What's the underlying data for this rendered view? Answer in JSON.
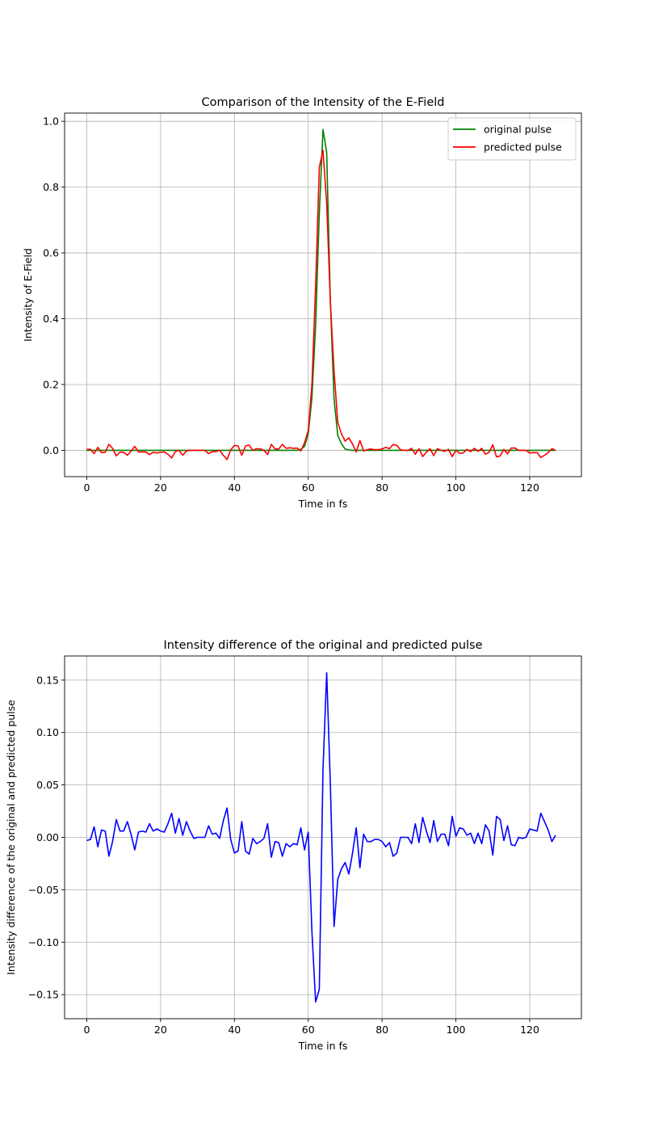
{
  "chart_data": [
    {
      "type": "line",
      "title": "Comparison of the Intensity of the E-Field",
      "xlabel": "Time in fs",
      "ylabel": "Intensity of E-Field",
      "xlim": [
        -6,
        134
      ],
      "ylim": [
        -0.08,
        1.025
      ],
      "xticks": [
        0,
        20,
        40,
        60,
        80,
        100,
        120
      ],
      "yticks": [
        0.0,
        0.2,
        0.4,
        0.6,
        0.8,
        1.0
      ],
      "grid": true,
      "legend_position": "top-right",
      "series": [
        {
          "name": "original pulse",
          "color": "#008000",
          "x": [
            0,
            57,
            58,
            59,
            60,
            61,
            62,
            63,
            64,
            65,
            66,
            67,
            68,
            69,
            70,
            71,
            72,
            127
          ],
          "y": [
            0.0,
            0.0,
            0.003,
            0.012,
            0.05,
            0.16,
            0.38,
            0.72,
            0.975,
            0.905,
            0.45,
            0.155,
            0.045,
            0.02,
            0.004,
            0.001,
            0.0,
            0.0
          ]
        },
        {
          "name": "predicted pulse",
          "color": "#ff0000",
          "x": [
            0,
            1,
            2,
            3,
            4,
            5,
            6,
            7,
            8,
            9,
            10,
            11,
            12,
            13,
            14,
            15,
            16,
            17,
            18,
            19,
            20,
            21,
            22,
            23,
            24,
            25,
            26,
            27,
            28,
            29,
            30,
            31,
            32,
            33,
            34,
            35,
            36,
            37,
            38,
            39,
            40,
            41,
            42,
            43,
            44,
            45,
            46,
            47,
            48,
            49,
            50,
            51,
            52,
            53,
            54,
            55,
            56,
            57,
            58,
            59,
            60,
            61,
            62,
            63,
            64,
            65,
            66,
            67,
            68,
            69,
            70,
            71,
            72,
            73,
            74,
            75,
            76,
            77,
            78,
            79,
            80,
            81,
            82,
            83,
            84,
            85,
            86,
            87,
            88,
            89,
            90,
            91,
            92,
            93,
            94,
            95,
            96,
            97,
            98,
            99,
            100,
            101,
            102,
            103,
            104,
            105,
            106,
            107,
            108,
            109,
            110,
            111,
            112,
            113,
            114,
            115,
            116,
            117,
            118,
            119,
            120,
            121,
            122,
            123,
            124,
            125,
            126,
            127
          ],
          "y": [
            0.003,
            0.003,
            -0.01,
            0.009,
            -0.007,
            -0.006,
            0.018,
            0.006,
            -0.017,
            -0.006,
            -0.006,
            -0.015,
            -0.003,
            0.012,
            -0.005,
            -0.005,
            -0.005,
            -0.013,
            -0.006,
            -0.008,
            -0.006,
            -0.005,
            -0.012,
            -0.023,
            -0.004,
            0.0,
            -0.015,
            -0.002,
            0.0,
            0.0,
            0.0,
            0.0,
            0.0,
            -0.01,
            -0.004,
            -0.004,
            0.0,
            -0.015,
            -0.028,
            0.001,
            0.015,
            0.013,
            -0.015,
            0.013,
            0.016,
            0.0,
            0.005,
            0.004,
            0.0,
            -0.013,
            0.018,
            0.004,
            0.004,
            0.018,
            0.006,
            0.008,
            0.006,
            0.007,
            -0.002,
            0.023,
            0.06,
            0.2,
            0.5,
            0.86,
            0.912,
            0.75,
            0.45,
            0.24,
            0.085,
            0.05,
            0.028,
            0.038,
            0.019,
            -0.005,
            0.03,
            -0.002,
            0.002,
            0.004,
            0.002,
            0.002,
            0.004,
            0.009,
            0.005,
            0.018,
            0.015,
            0.002,
            0.0,
            0.0,
            0.006,
            -0.012,
            0.005,
            -0.019,
            -0.006,
            0.005,
            -0.016,
            0.005,
            0.0,
            -0.003,
            0.003,
            -0.019,
            0.0,
            -0.009,
            -0.008,
            0.003,
            -0.004,
            0.006,
            -0.003,
            0.006,
            -0.012,
            -0.006,
            0.017,
            -0.02,
            -0.017,
            0.003,
            -0.011,
            0.007,
            0.007,
            0.0,
            0.0,
            0.0,
            -0.008,
            -0.007,
            -0.007,
            -0.022,
            -0.015,
            -0.007,
            0.005,
            0.0
          ]
        }
      ]
    },
    {
      "type": "line",
      "title": "Intensity difference of the original and predicted pulse",
      "xlabel": "Time in fs",
      "ylabel": "Intensity difference of the original and predicted pulse",
      "xlim": [
        -6,
        134
      ],
      "ylim": [
        -0.173,
        0.173
      ],
      "xticks": [
        0,
        20,
        40,
        60,
        80,
        100,
        120
      ],
      "yticks": [
        -0.15,
        -0.1,
        -0.05,
        0.0,
        0.05,
        0.1,
        0.15
      ],
      "ytick_labels": [
        "−0.15",
        "−0.10",
        "−0.05",
        "0.00",
        "0.05",
        "0.10",
        "0.15"
      ],
      "grid": true,
      "series": [
        {
          "color": "#0000ff",
          "x": [
            0,
            1,
            2,
            3,
            4,
            5,
            6,
            7,
            8,
            9,
            10,
            11,
            12,
            13,
            14,
            15,
            16,
            17,
            18,
            19,
            20,
            21,
            22,
            23,
            24,
            25,
            26,
            27,
            28,
            29,
            30,
            31,
            32,
            33,
            34,
            35,
            36,
            37,
            38,
            39,
            40,
            41,
            42,
            43,
            44,
            45,
            46,
            47,
            48,
            49,
            50,
            51,
            52,
            53,
            54,
            55,
            56,
            57,
            58,
            59,
            60,
            61,
            62,
            63,
            64,
            65,
            66,
            67,
            68,
            69,
            70,
            71,
            72,
            73,
            74,
            75,
            76,
            77,
            78,
            79,
            80,
            81,
            82,
            83,
            84,
            85,
            86,
            87,
            88,
            89,
            90,
            91,
            92,
            93,
            94,
            95,
            96,
            97,
            98,
            99,
            100,
            101,
            102,
            103,
            104,
            105,
            106,
            107,
            108,
            109,
            110,
            111,
            112,
            113,
            114,
            115,
            116,
            117,
            118,
            119,
            120,
            121,
            122,
            123,
            124,
            125,
            126,
            127
          ],
          "y": [
            -0.003,
            -0.002,
            0.01,
            -0.009,
            0.007,
            0.006,
            -0.018,
            -0.004,
            0.017,
            0.006,
            0.006,
            0.015,
            0.003,
            -0.012,
            0.005,
            0.006,
            0.005,
            0.013,
            0.006,
            0.008,
            0.006,
            0.005,
            0.013,
            0.023,
            0.004,
            0.018,
            0.002,
            0.015,
            0.006,
            -0.001,
            0.0,
            0.0,
            0.0,
            0.011,
            0.003,
            0.004,
            -0.001,
            0.016,
            0.028,
            -0.002,
            -0.015,
            -0.013,
            0.015,
            -0.013,
            -0.016,
            -0.001,
            -0.006,
            -0.004,
            -0.001,
            0.013,
            -0.019,
            -0.004,
            -0.005,
            -0.018,
            -0.006,
            -0.009,
            -0.006,
            -0.007,
            0.009,
            -0.012,
            0.005,
            -0.09,
            -0.157,
            -0.145,
            0.065,
            0.157,
            0.05,
            -0.085,
            -0.04,
            -0.03,
            -0.024,
            -0.035,
            -0.015,
            0.009,
            -0.029,
            0.003,
            -0.004,
            -0.004,
            -0.002,
            -0.002,
            -0.004,
            -0.009,
            -0.005,
            -0.018,
            -0.015,
            0.0,
            0.0,
            0.0,
            -0.006,
            0.013,
            -0.005,
            0.019,
            0.006,
            -0.005,
            0.016,
            -0.004,
            0.003,
            0.003,
            -0.008,
            0.02,
            0.001,
            0.009,
            0.008,
            0.002,
            0.004,
            -0.006,
            0.004,
            -0.006,
            0.012,
            0.006,
            -0.017,
            0.02,
            0.017,
            -0.003,
            0.011,
            -0.007,
            -0.008,
            0.0,
            -0.001,
            0.0,
            0.008,
            0.007,
            0.006,
            0.023,
            0.015,
            0.007,
            -0.004,
            0.002
          ]
        }
      ]
    }
  ]
}
